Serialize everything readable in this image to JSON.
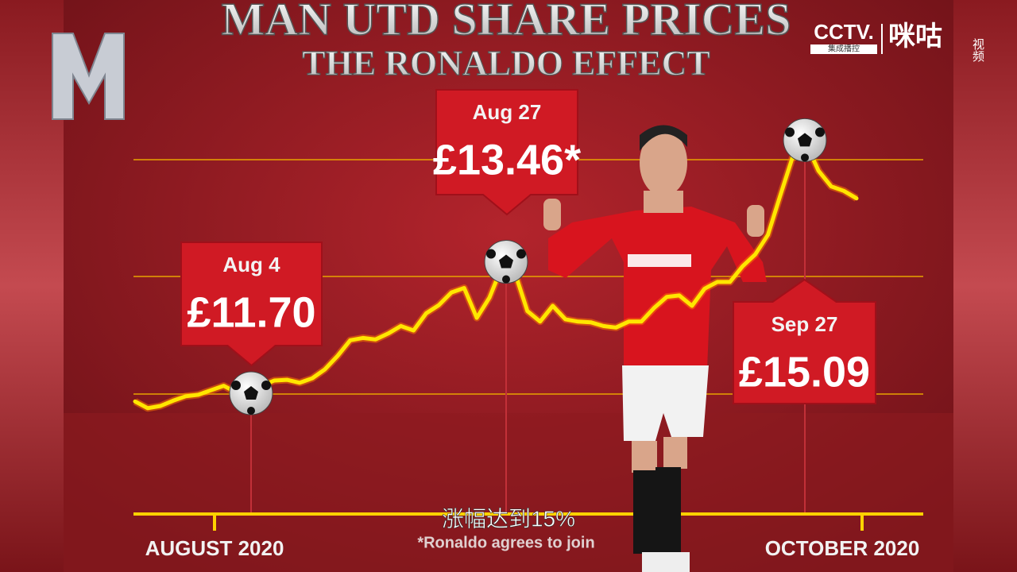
{
  "overlay": {
    "channel_logo": "CCTV.",
    "channel_sub": "集成播控",
    "brand": "咪咕",
    "brand_sub": "视频",
    "caption": "涨幅达到15%"
  },
  "chart_data": {
    "type": "line",
    "title": "MAN UTD SHARE PRICES",
    "subtitle": "THE RONALDO EFFECT",
    "x_axis_labels": [
      "AUGUST 2020",
      "OCTOBER 2020"
    ],
    "footnote": "*Ronaldo agrees to join",
    "color": "#ffe600",
    "ylim": [
      10,
      15.5
    ],
    "values": [
      11.59,
      11.5,
      11.53,
      11.6,
      11.66,
      11.68,
      11.74,
      11.8,
      11.71,
      11.71,
      11.8,
      11.87,
      11.88,
      11.84,
      11.9,
      12.02,
      12.2,
      12.41,
      12.44,
      12.42,
      12.5,
      12.6,
      12.54,
      12.77,
      12.88,
      13.05,
      13.11,
      12.71,
      12.98,
      13.4,
      13.32,
      12.8,
      12.66,
      12.87,
      12.69,
      12.66,
      12.65,
      12.6,
      12.58,
      12.66,
      12.66,
      12.84,
      12.99,
      13.01,
      12.87,
      13.1,
      13.19,
      13.19,
      13.4,
      13.56,
      13.82,
      14.36,
      14.89,
      15.05,
      14.68,
      14.47,
      14.41,
      14.31
    ],
    "annotations": [
      {
        "date": "Aug 4",
        "value": 11.7,
        "value_label": "£11.70"
      },
      {
        "date": "Aug 27",
        "value": 13.46,
        "value_label": "£13.46*"
      },
      {
        "date": "Sep 27",
        "value": 15.09,
        "value_label": "£15.09"
      }
    ]
  }
}
